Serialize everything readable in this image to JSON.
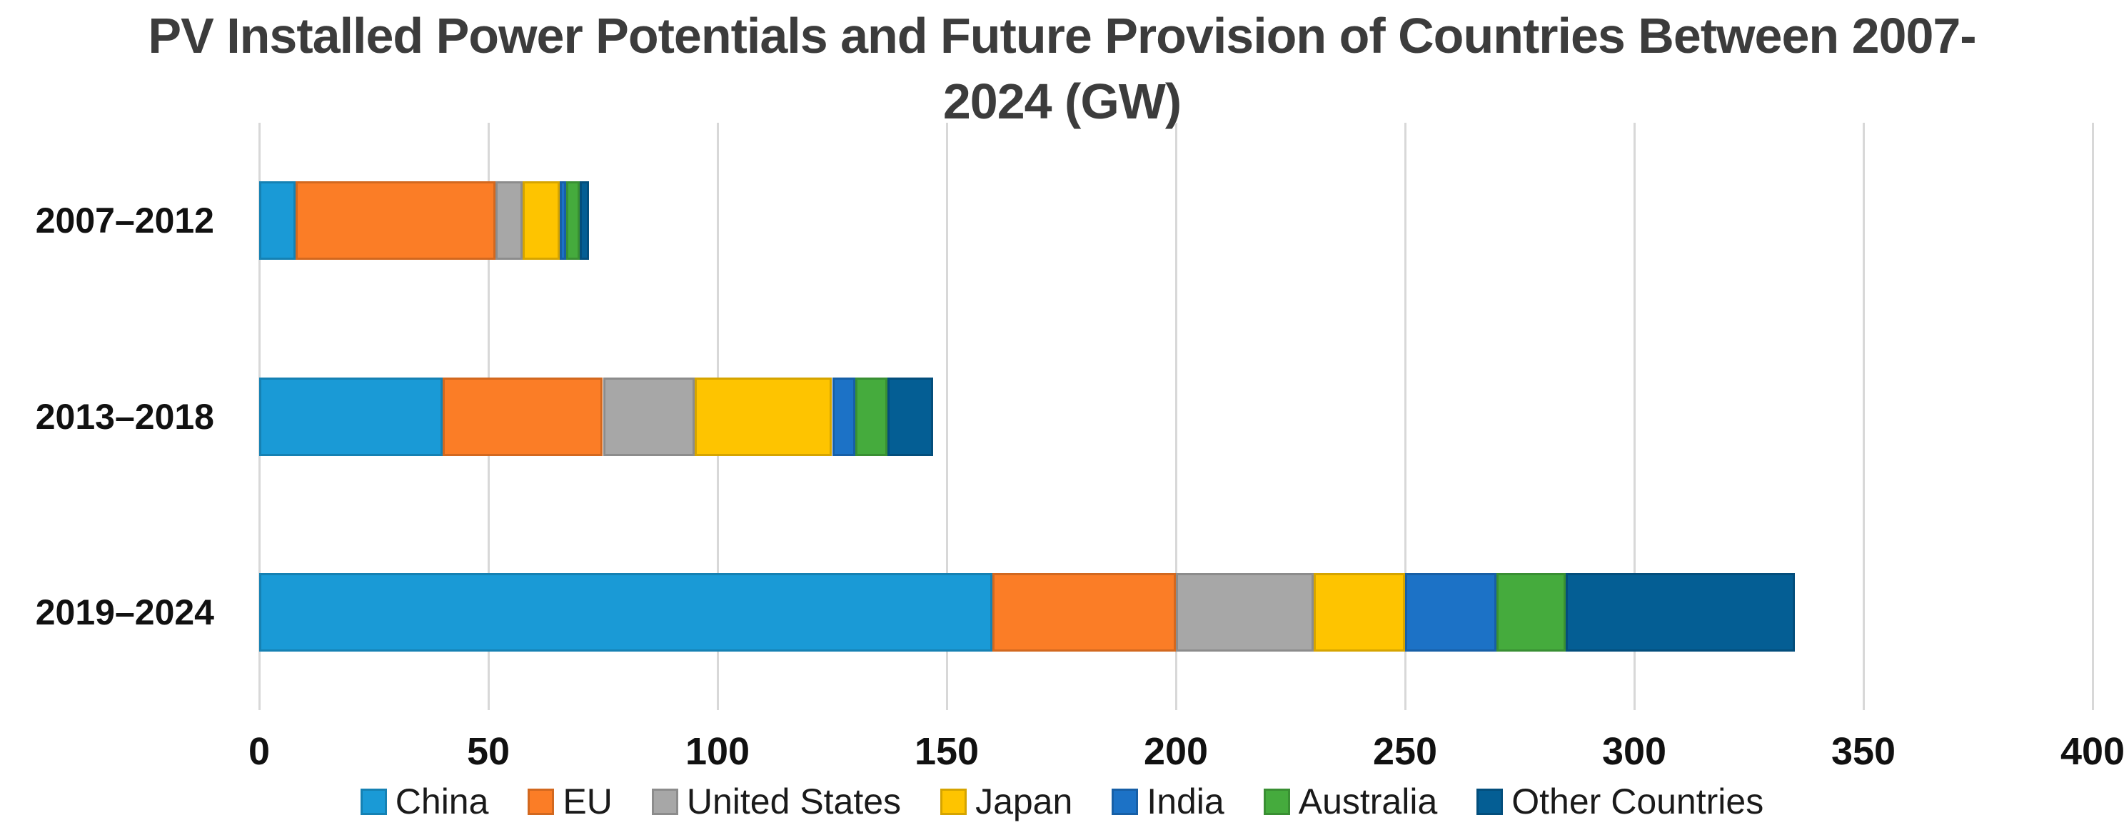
{
  "title_lines": [
    "PV Installed Power Potentials and Future Provision of Countries Between 2007-",
    "2024 (GW)"
  ],
  "colors": {
    "background": "#FFFFFF",
    "gridline": "#D8D8D8",
    "title_text": "#3C3C3C",
    "axis_text": "#111111"
  },
  "chart_data": {
    "type": "bar",
    "orientation": "horizontal",
    "stacked": true,
    "title": "PV Installed Power Potentials and Future Provision of Countries Between 2007-2024 (GW)",
    "categories": [
      "2007–2012",
      "2013–2018",
      "2019–2024"
    ],
    "series": [
      {
        "name": "China",
        "color": "#1A9AD6",
        "values": [
          8,
          40,
          160
        ]
      },
      {
        "name": "EU",
        "color": "#FB7D26",
        "values": [
          43.5,
          35,
          40
        ]
      },
      {
        "name": "United States",
        "color": "#A7A7A7",
        "values": [
          6,
          20,
          30
        ]
      },
      {
        "name": "Japan",
        "color": "#FEC400",
        "values": [
          8,
          30,
          20
        ]
      },
      {
        "name": "India",
        "color": "#1C72C6",
        "values": [
          1.5,
          5,
          20
        ]
      },
      {
        "name": "Australia",
        "color": "#45AB3D",
        "values": [
          3,
          7,
          15
        ]
      },
      {
        "name": "Other Countries",
        "color": "#045E94",
        "values": [
          2,
          10,
          50
        ]
      }
    ],
    "totals_by_category": [
      72,
      147,
      335
    ],
    "x_axis": {
      "min": 0,
      "max": 400,
      "tick_step": 50,
      "ticks": [
        0,
        50,
        100,
        150,
        200,
        250,
        300,
        350,
        400
      ]
    },
    "ylabel": "",
    "xlabel": "",
    "grid": "vertical",
    "legend_position": "bottom"
  }
}
